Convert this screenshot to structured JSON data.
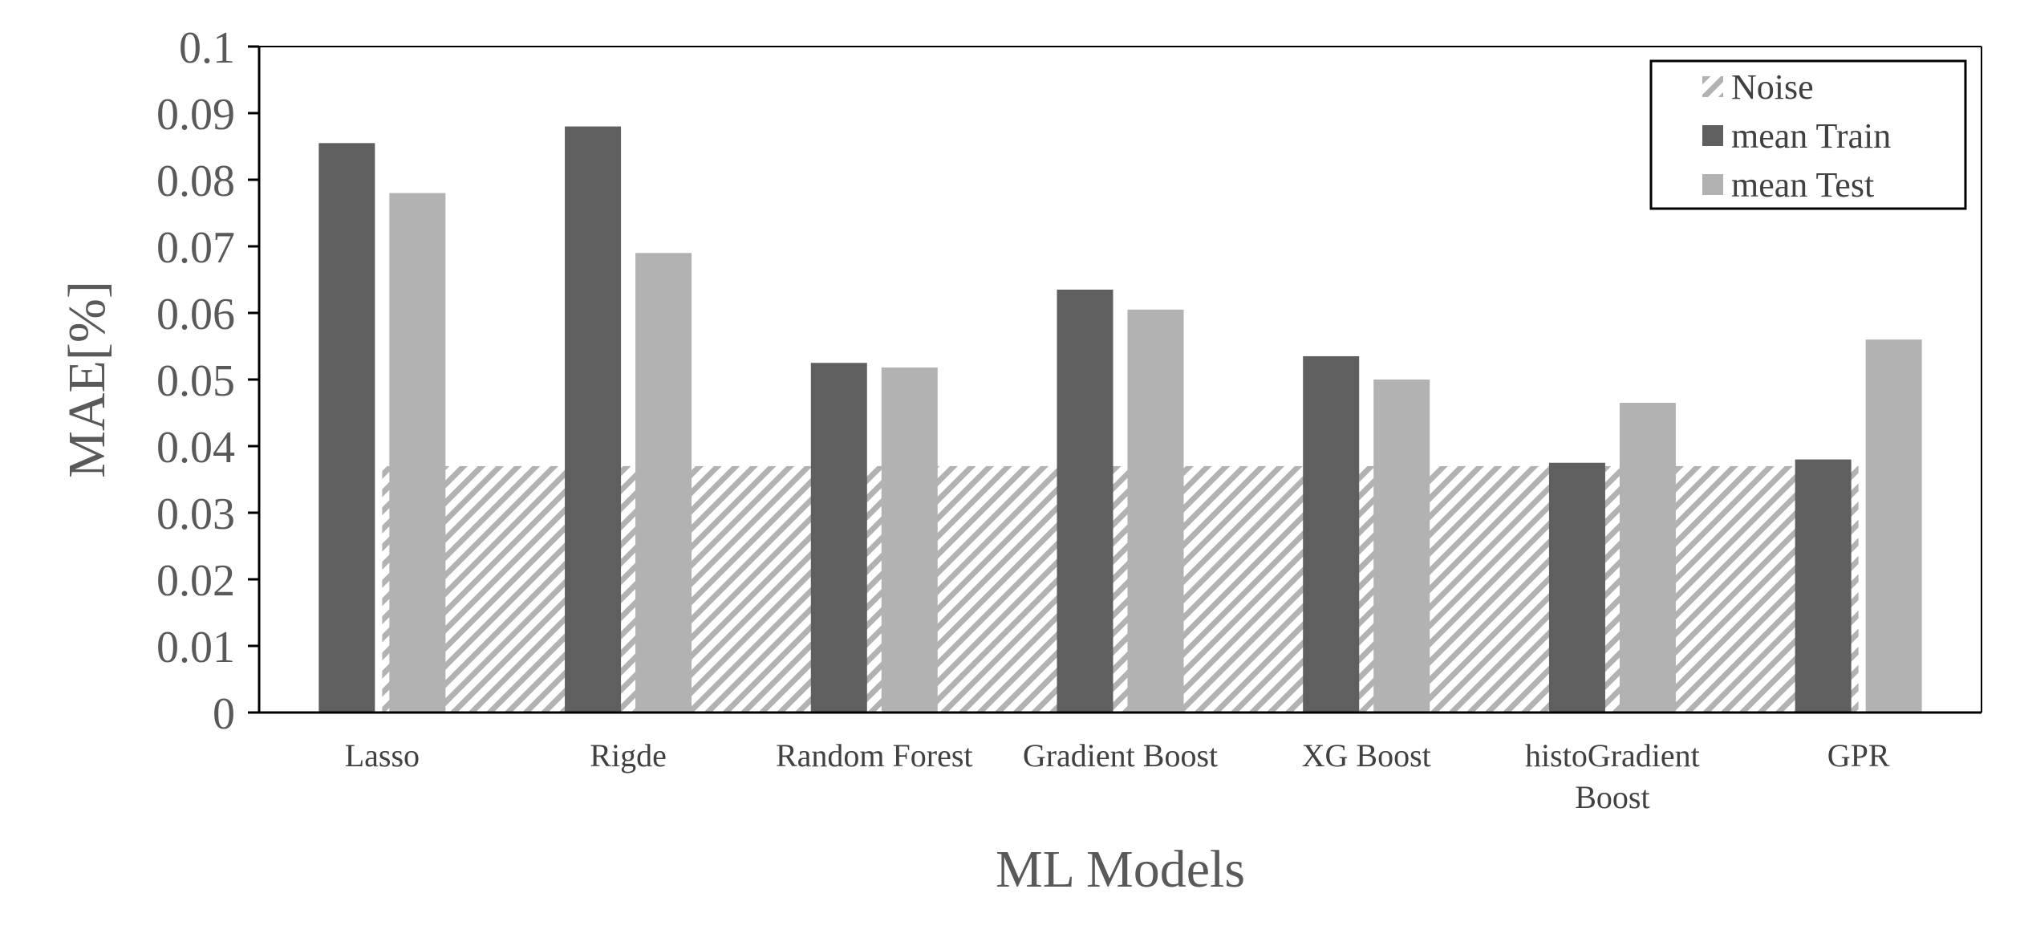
{
  "chart_data": {
    "type": "bar",
    "title": "",
    "xlabel": "ML Models",
    "ylabel": "MAE[%]",
    "ylim": [
      0,
      0.1
    ],
    "yticks": [
      "0",
      "0.01",
      "0.02",
      "0.03",
      "0.04",
      "0.05",
      "0.06",
      "0.07",
      "0.08",
      "0.09",
      "0.1"
    ],
    "categories": [
      [
        "Lasso"
      ],
      [
        "Rigde"
      ],
      [
        "Random Forest"
      ],
      [
        "Gradient Boost"
      ],
      [
        "XG Boost"
      ],
      [
        "histoGradient",
        "Boost"
      ],
      [
        "GPR"
      ]
    ],
    "noise": {
      "name": "Noise",
      "value": 0.037,
      "style": "diagonal-hatch",
      "color": "#b2b2b2"
    },
    "series": [
      {
        "name": "mean Train",
        "color": "#5f5f5f",
        "values": [
          0.0855,
          0.088,
          0.0525,
          0.0635,
          0.0535,
          0.0375,
          0.038
        ]
      },
      {
        "name": "mean Test",
        "color": "#b2b2b2",
        "values": [
          0.078,
          0.069,
          0.0518,
          0.0605,
          0.05,
          0.0465,
          0.056
        ]
      }
    ],
    "legend_position": "top-right",
    "grid": false
  }
}
